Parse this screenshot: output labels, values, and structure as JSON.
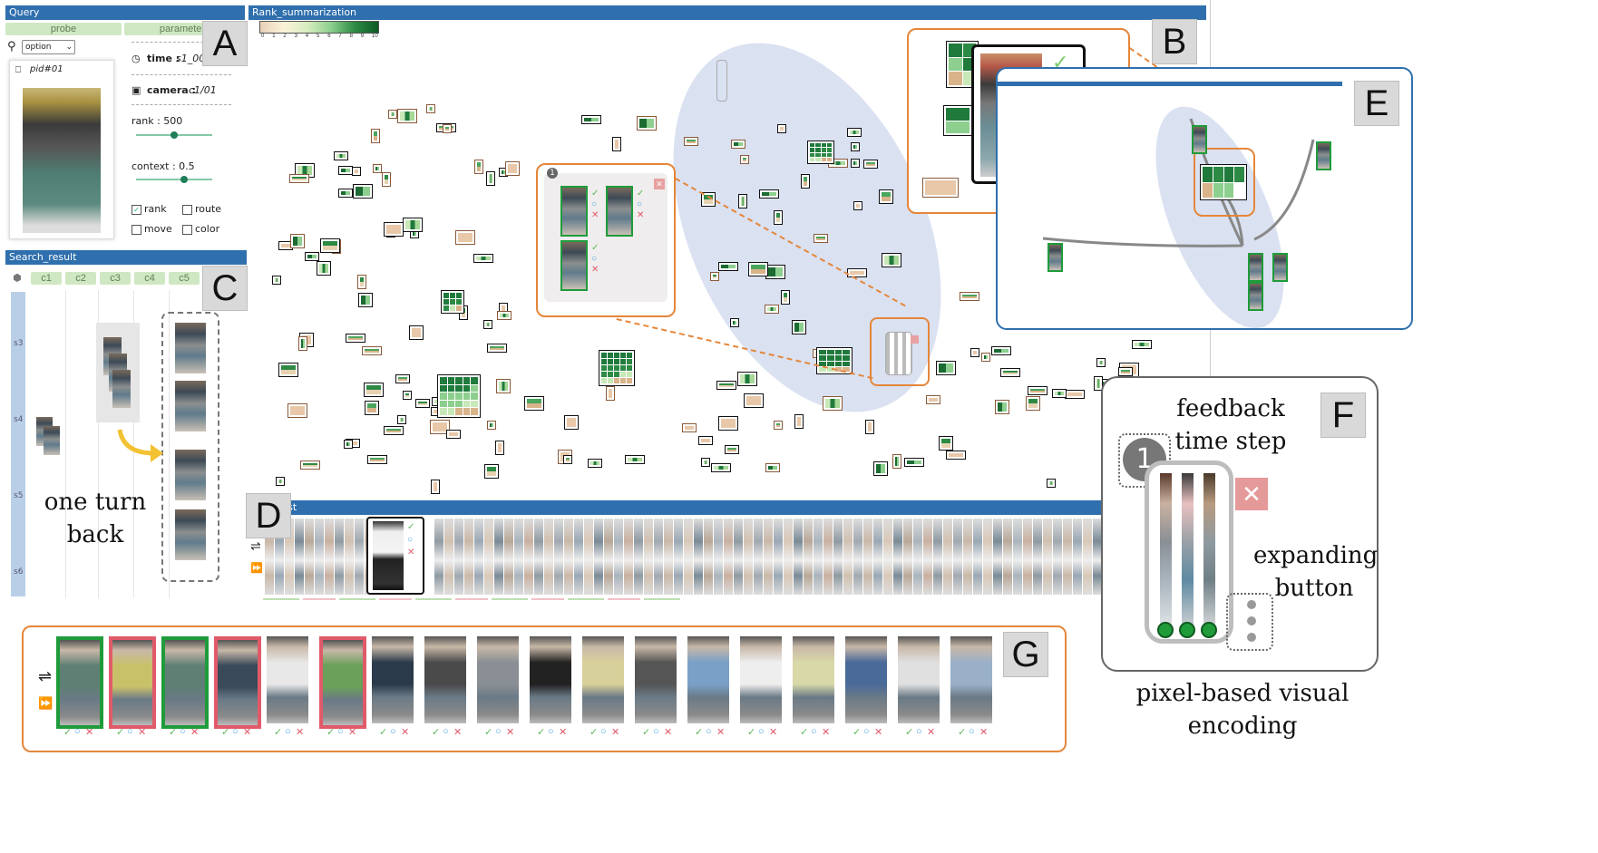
{
  "query_panel": {
    "title": "Query",
    "tab_probe": "probe",
    "tab_parameter": "parameter",
    "option_select": "option",
    "probe_id": "pid#01",
    "time_label": "time :",
    "time_value": "s1_001",
    "camera_label": "camera :",
    "camera_value": "c1/01",
    "rank_label": "rank : 500",
    "rank_fraction": 0.45,
    "context_label": "context : 0.5",
    "context_fraction": 0.5,
    "checkbox_rank": "rank",
    "checkbox_route": "route",
    "checkbox_move": "move",
    "checkbox_color": "color"
  },
  "rank_summarization": {
    "title": "Rank_summarization",
    "legend_ticks": [
      "0",
      "1",
      "2",
      "3",
      "4",
      "5",
      "6",
      "7",
      "8",
      "9",
      "10"
    ]
  },
  "search_result": {
    "title": "Search_result",
    "columns": [
      "c1",
      "c2",
      "c3",
      "c4",
      "c5"
    ],
    "rows": [
      "s3",
      "s4",
      "s5",
      "s6"
    ],
    "annotation": "one turn\nback"
  },
  "rank_list": {
    "title": "Rank_list"
  },
  "panel_letters": [
    "A",
    "B",
    "C",
    "D",
    "E",
    "F",
    "G"
  ],
  "feedback_glyph": {
    "step_number": "1",
    "label_feedback": "feedback",
    "label_time_step": "time step",
    "label_expanding": "expanding",
    "label_button": "button",
    "label_pixel": "pixel-based visual",
    "label_encoding": "encoding"
  },
  "icons": {
    "check": "✓",
    "circle": "○",
    "cross": "✕",
    "swap": "⇌",
    "forward": "⏩"
  },
  "colors": {
    "accent_blue": "#2f6fad",
    "feedback_orange": "#e5863a",
    "accept_green": "#1f9b3a",
    "reject_red": "#e05a6a",
    "tab_green": "#cfe8c3"
  },
  "gallery": {
    "statuses": [
      "accepted",
      "rejected",
      "accepted",
      "rejected",
      "none",
      "rejected",
      "none",
      "none",
      "none",
      "none",
      "none",
      "none",
      "none",
      "none",
      "none",
      "none",
      "none",
      "none",
      "none"
    ]
  }
}
